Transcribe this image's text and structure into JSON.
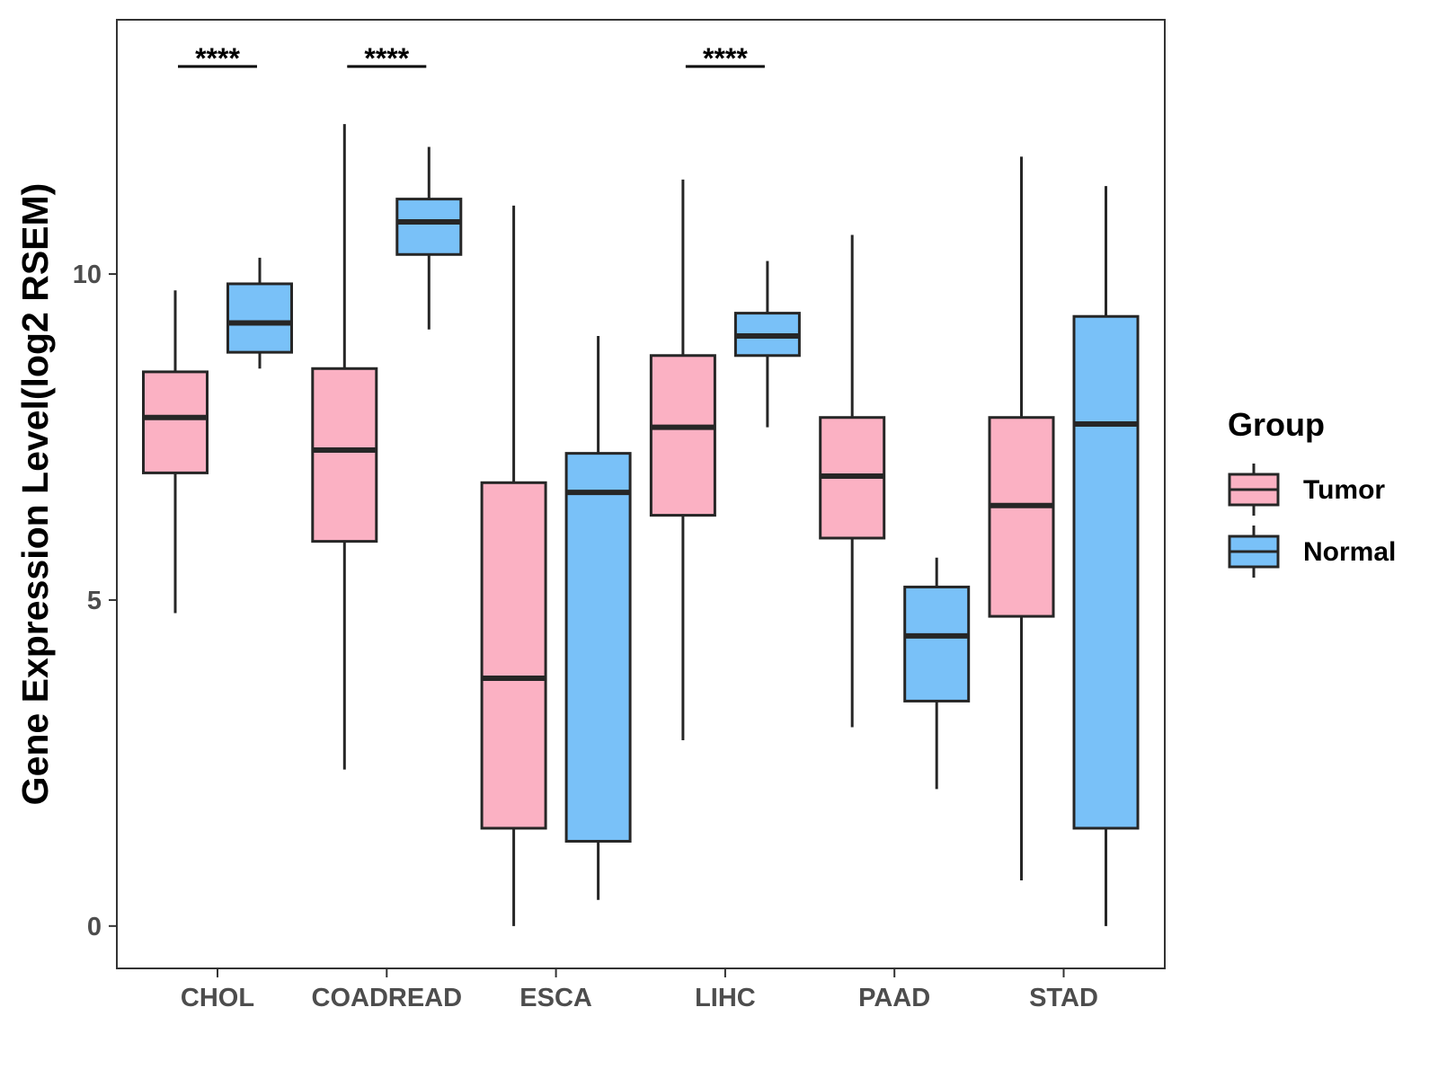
{
  "chart_data": {
    "type": "boxplot",
    "ylabel": "Gene Expression Level(log2 RSEM)",
    "xlabel": "",
    "ylim": [
      -0.65,
      13.9
    ],
    "yticks": [
      0,
      5,
      10
    ],
    "categories": [
      "CHOL",
      "COADREAD",
      "ESCA",
      "LIHC",
      "PAAD",
      "STAD"
    ],
    "legend": {
      "title": "Group",
      "position": "right",
      "entries": [
        {
          "name": "Tumor",
          "color": "#FBB1C3"
        },
        {
          "name": "Normal",
          "color": "#79C1F8"
        }
      ]
    },
    "series": [
      {
        "name": "Tumor",
        "color": "#FBB1C3",
        "boxes": [
          {
            "category": "CHOL",
            "min": 4.8,
            "q1": 6.95,
            "median": 7.8,
            "q3": 8.5,
            "max": 9.75
          },
          {
            "category": "COADREAD",
            "min": 2.4,
            "q1": 5.9,
            "median": 7.3,
            "q3": 8.55,
            "max": 12.3
          },
          {
            "category": "ESCA",
            "min": 0.0,
            "q1": 1.5,
            "median": 3.8,
            "q3": 6.8,
            "max": 11.05
          },
          {
            "category": "LIHC",
            "min": 2.85,
            "q1": 6.3,
            "median": 7.65,
            "q3": 8.75,
            "max": 11.45
          },
          {
            "category": "PAAD",
            "min": 3.05,
            "q1": 5.95,
            "median": 6.9,
            "q3": 7.8,
            "max": 10.6
          },
          {
            "category": "STAD",
            "min": 0.7,
            "q1": 4.75,
            "median": 6.45,
            "q3": 7.8,
            "max": 11.8
          }
        ]
      },
      {
        "name": "Normal",
        "color": "#79C1F8",
        "boxes": [
          {
            "category": "CHOL",
            "min": 8.55,
            "q1": 8.8,
            "median": 9.25,
            "q3": 9.85,
            "max": 10.25
          },
          {
            "category": "COADREAD",
            "min": 9.15,
            "q1": 10.3,
            "median": 10.8,
            "q3": 11.15,
            "max": 11.95
          },
          {
            "category": "ESCA",
            "min": 0.4,
            "q1": 1.3,
            "median": 6.65,
            "q3": 7.25,
            "max": 9.05
          },
          {
            "category": "LIHC",
            "min": 7.65,
            "q1": 8.75,
            "median": 9.05,
            "q3": 9.4,
            "max": 10.2
          },
          {
            "category": "PAAD",
            "min": 2.1,
            "q1": 3.45,
            "median": 4.45,
            "q3": 5.2,
            "max": 5.65
          },
          {
            "category": "STAD",
            "min": 0.0,
            "q1": 1.5,
            "median": 7.7,
            "q3": 9.35,
            "max": 11.35
          }
        ]
      }
    ],
    "annotations": [
      {
        "category": "CHOL",
        "text": "****"
      },
      {
        "category": "COADREAD",
        "text": "****"
      },
      {
        "category": "LIHC",
        "text": "****"
      }
    ]
  }
}
